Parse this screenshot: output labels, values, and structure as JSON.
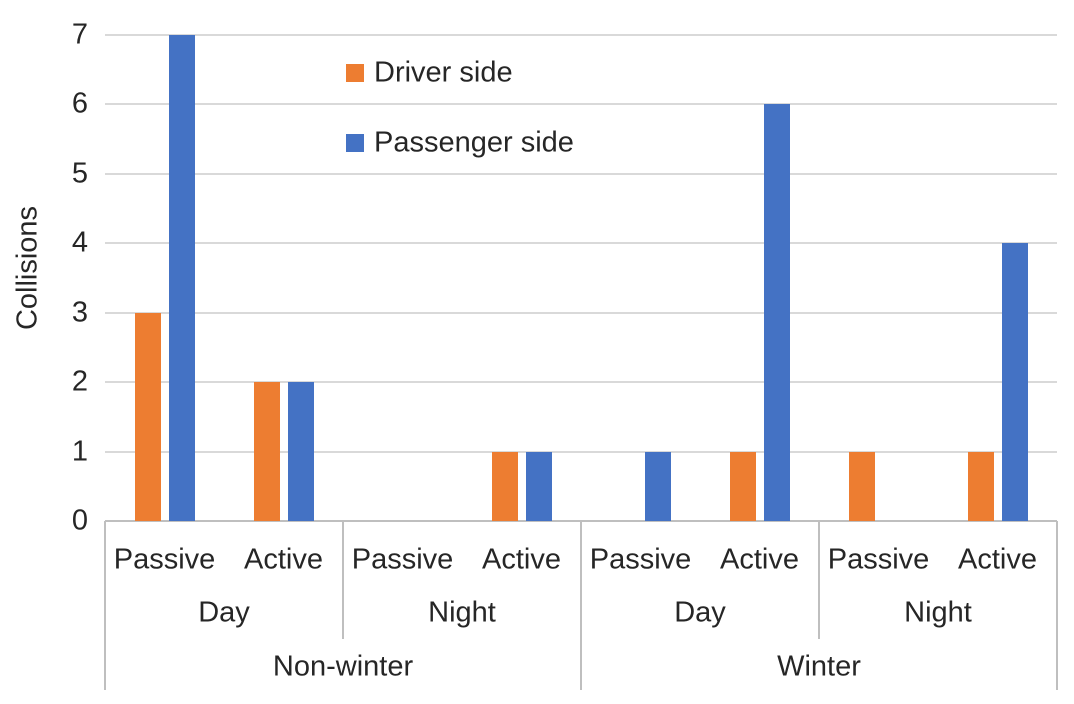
{
  "chart_data": {
    "type": "bar",
    "title": "",
    "ylabel": "Collisions",
    "xlabel": "",
    "ylim": [
      0,
      7
    ],
    "yticks": [
      0,
      1,
      2,
      3,
      4,
      5,
      6,
      7
    ],
    "grid": true,
    "legend_position": "upper-left-inside",
    "categories": [
      "Passive",
      "Active",
      "Passive",
      "Active",
      "Passive",
      "Active",
      "Passive",
      "Active"
    ],
    "category_groups_mid": [
      {
        "label": "Day",
        "span": 2
      },
      {
        "label": "Night",
        "span": 2
      },
      {
        "label": "Day",
        "span": 2
      },
      {
        "label": "Night",
        "span": 2
      }
    ],
    "category_groups_outer": [
      {
        "label": "Non-winter",
        "span": 4
      },
      {
        "label": "Winter",
        "span": 4
      }
    ],
    "series": [
      {
        "name": "Driver side",
        "color": "#ED7D31",
        "values": [
          3,
          2,
          0,
          1,
          0,
          1,
          1,
          1
        ]
      },
      {
        "name": "Passenger side",
        "color": "#4472C4",
        "values": [
          7,
          2,
          0,
          1,
          1,
          6,
          0,
          4
        ]
      }
    ],
    "colors": {
      "gridline": "#D9D9D9",
      "axis": "#BFBFBF",
      "text": "#262626",
      "background": "#FFFFFF"
    }
  }
}
